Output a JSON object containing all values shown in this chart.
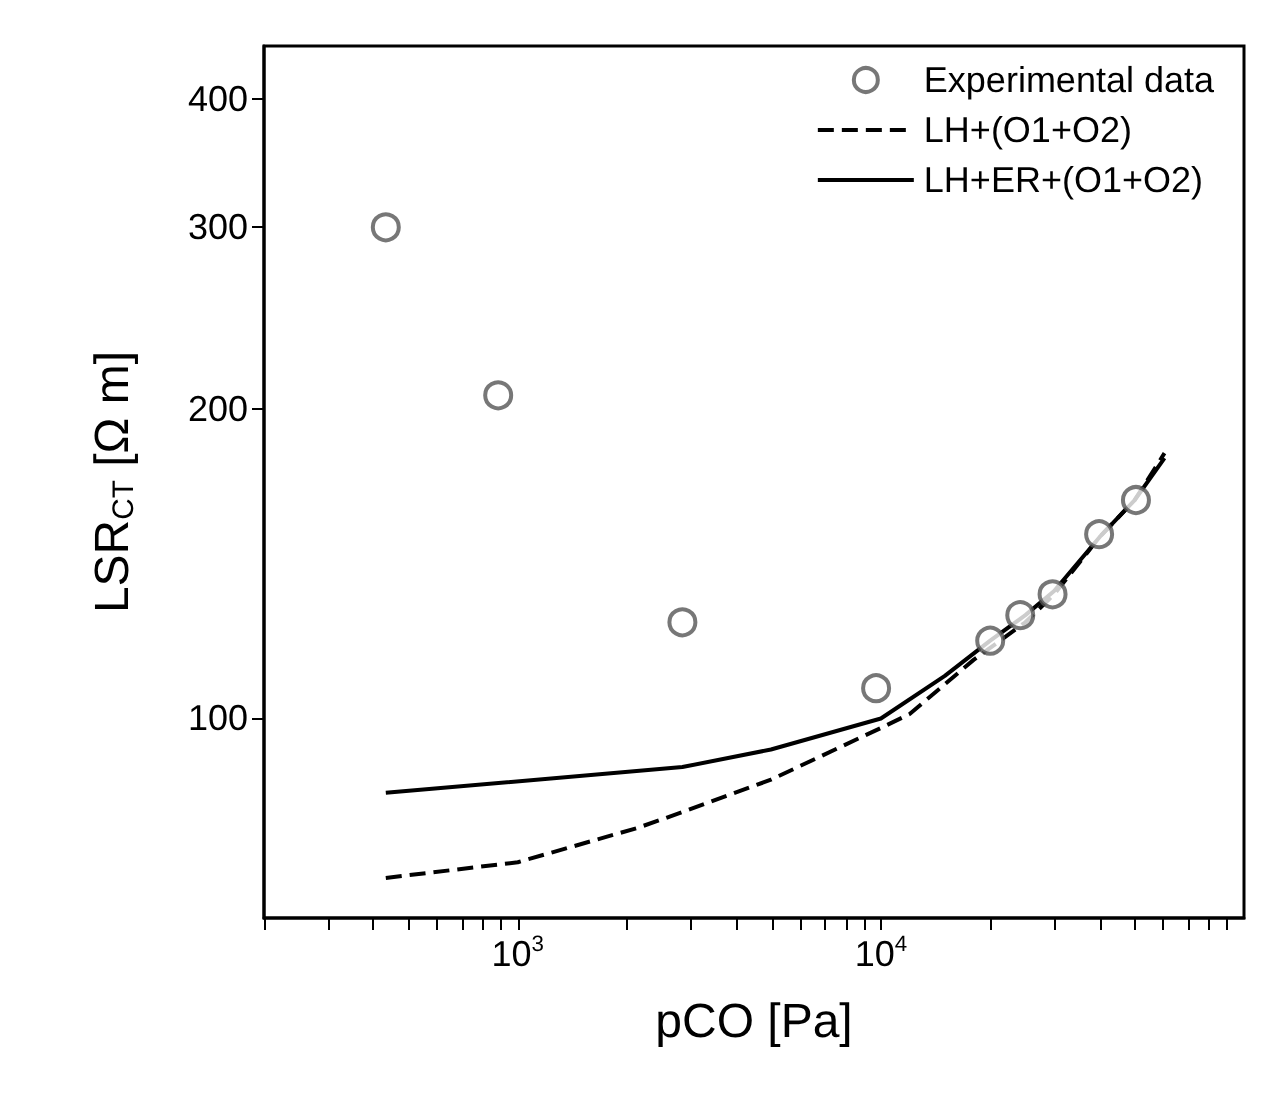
{
  "chart_data": {
    "type": "line",
    "xlabel": "pCO [Pa]",
    "ylabel": "LSR$_{CT}$ [Ω m]",
    "log": "xy",
    "legend": "top right",
    "grid": false,
    "xlim": [
      200,
      100000
    ],
    "ylim": [
      64,
      450
    ],
    "xticks": [
      {
        "value": 200,
        "label": null
      },
      {
        "value": 300,
        "label": null
      },
      {
        "value": 400,
        "label": null
      },
      {
        "value": 500,
        "label": null
      },
      {
        "value": 600,
        "label": null
      },
      {
        "value": 700,
        "label": null
      },
      {
        "value": 800,
        "label": null
      },
      {
        "value": 900,
        "label": null
      },
      {
        "value": 1000,
        "label": "10$^{3}$"
      },
      {
        "value": 2000,
        "label": null
      },
      {
        "value": 3000,
        "label": null
      },
      {
        "value": 4000,
        "label": null
      },
      {
        "value": 5000,
        "label": null
      },
      {
        "value": 6000,
        "label": null
      },
      {
        "value": 7000,
        "label": null
      },
      {
        "value": 8000,
        "label": null
      },
      {
        "value": 9000,
        "label": null
      },
      {
        "value": 10000,
        "label": "10$^{4}$"
      },
      {
        "value": 20000,
        "label": null
      },
      {
        "value": 30000,
        "label": null
      },
      {
        "value": 40000,
        "label": null
      },
      {
        "value": 50000,
        "label": null
      },
      {
        "value": 60000,
        "label": null
      },
      {
        "value": 70000,
        "label": null
      },
      {
        "value": 80000,
        "label": null
      },
      {
        "value": 90000,
        "label": null
      }
    ],
    "yticks": [
      100,
      200,
      300,
      400
    ],
    "series": [
      {
        "name": "Experimental data",
        "type": "scatter",
        "marker": "circle",
        "color": "#555555",
        "x": [
          433,
          883,
          2840,
          9700,
          20000,
          24200,
          29700,
          39900,
          50400
        ],
        "values": [
          300,
          206,
          124,
          107,
          119,
          126,
          132,
          151,
          163
        ]
      },
      {
        "name": "LH+(O1+O2)",
        "line_style": "dashed",
        "marker": "none",
        "color": "#000000",
        "x": [
          433,
          1000,
          2140,
          2840,
          4980,
          10000,
          12000,
          18000,
          25000,
          30000,
          40000,
          50000,
          60400
        ],
        "values": [
          70,
          72.5,
          78.3,
          81.1,
          87.2,
          97.9,
          101,
          114,
          124,
          132,
          150,
          163,
          181
        ]
      },
      {
        "name": "LH+ER+(O1+O2)",
        "line_style": "solid",
        "marker": "none",
        "color": "#000000",
        "x": [
          433,
          2840,
          4980,
          10000,
          15000,
          20000,
          25000,
          30000,
          40000,
          50000,
          60400
        ],
        "values": [
          84.7,
          89.7,
          93.3,
          100,
          110,
          119,
          126,
          133,
          150,
          163,
          179
        ]
      }
    ]
  }
}
